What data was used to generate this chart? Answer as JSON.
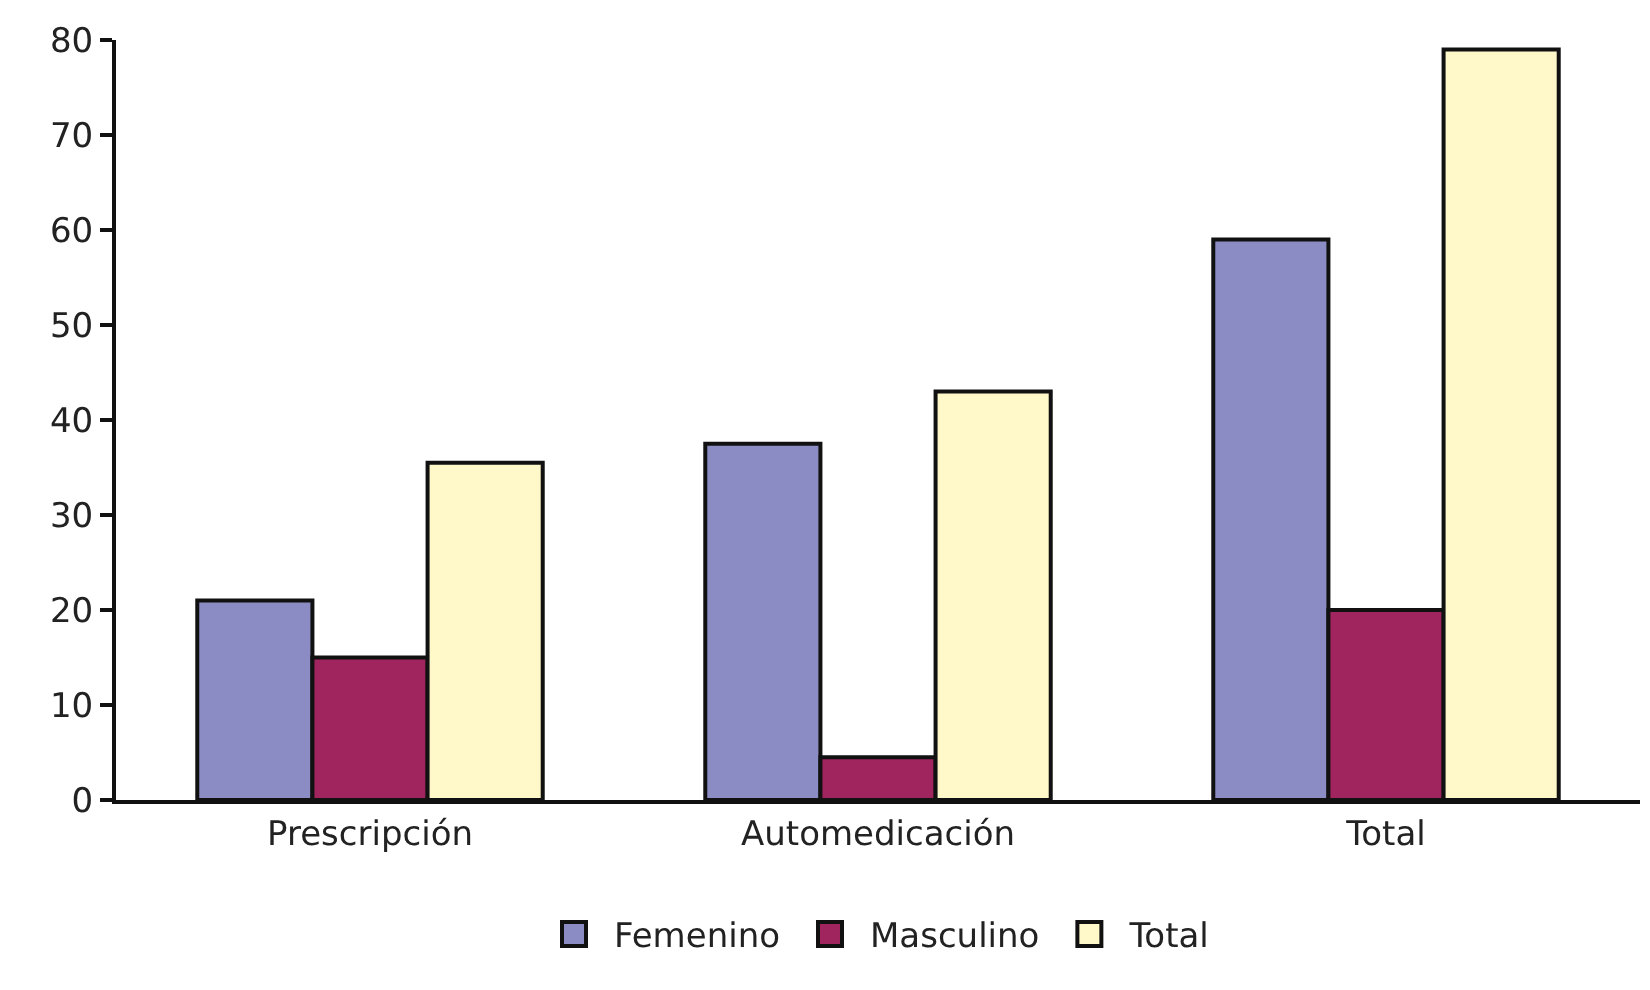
{
  "chart_data": {
    "type": "bar",
    "categories": [
      "Prescripción",
      "Automedicación",
      "Total"
    ],
    "series": [
      {
        "name": "Femenino",
        "color": "#8c8cc4",
        "values": [
          21,
          37.5,
          59
        ]
      },
      {
        "name": "Masculino",
        "color": "#a0245e",
        "values": [
          15,
          4.5,
          20
        ]
      },
      {
        "name": "Total",
        "color": "#fff8c8",
        "values": [
          35.5,
          43,
          79
        ]
      }
    ],
    "ylim": [
      0,
      80
    ],
    "yticks": [
      0,
      10,
      20,
      30,
      40,
      50,
      60,
      70,
      80
    ],
    "grid": false,
    "legend": "bottom"
  }
}
